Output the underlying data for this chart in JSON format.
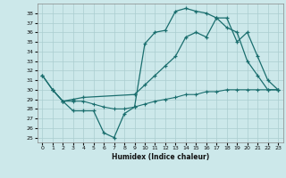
{
  "xlabel": "Humidex (Indice chaleur)",
  "bg_color": "#cce8ea",
  "grid_color": "#aacdd0",
  "line_color": "#1a6e6e",
  "xlim": [
    -0.5,
    23.5
  ],
  "ylim": [
    24.5,
    39.0
  ],
  "xticks": [
    0,
    1,
    2,
    3,
    4,
    5,
    6,
    7,
    8,
    9,
    10,
    11,
    12,
    13,
    14,
    15,
    16,
    17,
    18,
    19,
    20,
    21,
    22,
    23
  ],
  "yticks": [
    25,
    26,
    27,
    28,
    29,
    30,
    31,
    32,
    33,
    34,
    35,
    36,
    37,
    38
  ],
  "line1_x": [
    0,
    1,
    2,
    3,
    4,
    5,
    6,
    7,
    8,
    9,
    10,
    11,
    12,
    13,
    14,
    15,
    16,
    17,
    18,
    19,
    20,
    21,
    22,
    23
  ],
  "line1_y": [
    31.5,
    30.0,
    28.8,
    27.8,
    27.8,
    27.8,
    25.5,
    25.0,
    27.5,
    28.2,
    34.8,
    36.0,
    36.2,
    38.2,
    38.5,
    38.2,
    38.0,
    37.5,
    36.5,
    36.0,
    33.0,
    31.5,
    30.0,
    30.0
  ],
  "line2_x": [
    0,
    1,
    2,
    3,
    4,
    9,
    10,
    11,
    12,
    13,
    14,
    15,
    16,
    17,
    18,
    19,
    20,
    21,
    22,
    23
  ],
  "line2_y": [
    31.5,
    30.0,
    28.8,
    29.0,
    29.2,
    29.5,
    30.5,
    31.5,
    32.5,
    33.5,
    35.5,
    36.0,
    35.5,
    37.5,
    37.5,
    35.0,
    36.0,
    33.5,
    31.0,
    30.0
  ],
  "line3_x": [
    1,
    2,
    3,
    4,
    5,
    6,
    7,
    8,
    9,
    10,
    11,
    12,
    13,
    14,
    15,
    16,
    17,
    18,
    19,
    20,
    21,
    22,
    23
  ],
  "line3_y": [
    30.0,
    28.8,
    28.8,
    28.8,
    28.5,
    28.2,
    28.0,
    28.0,
    28.2,
    28.5,
    28.8,
    29.0,
    29.2,
    29.5,
    29.5,
    29.8,
    29.8,
    30.0,
    30.0,
    30.0,
    30.0,
    30.0,
    30.0
  ]
}
